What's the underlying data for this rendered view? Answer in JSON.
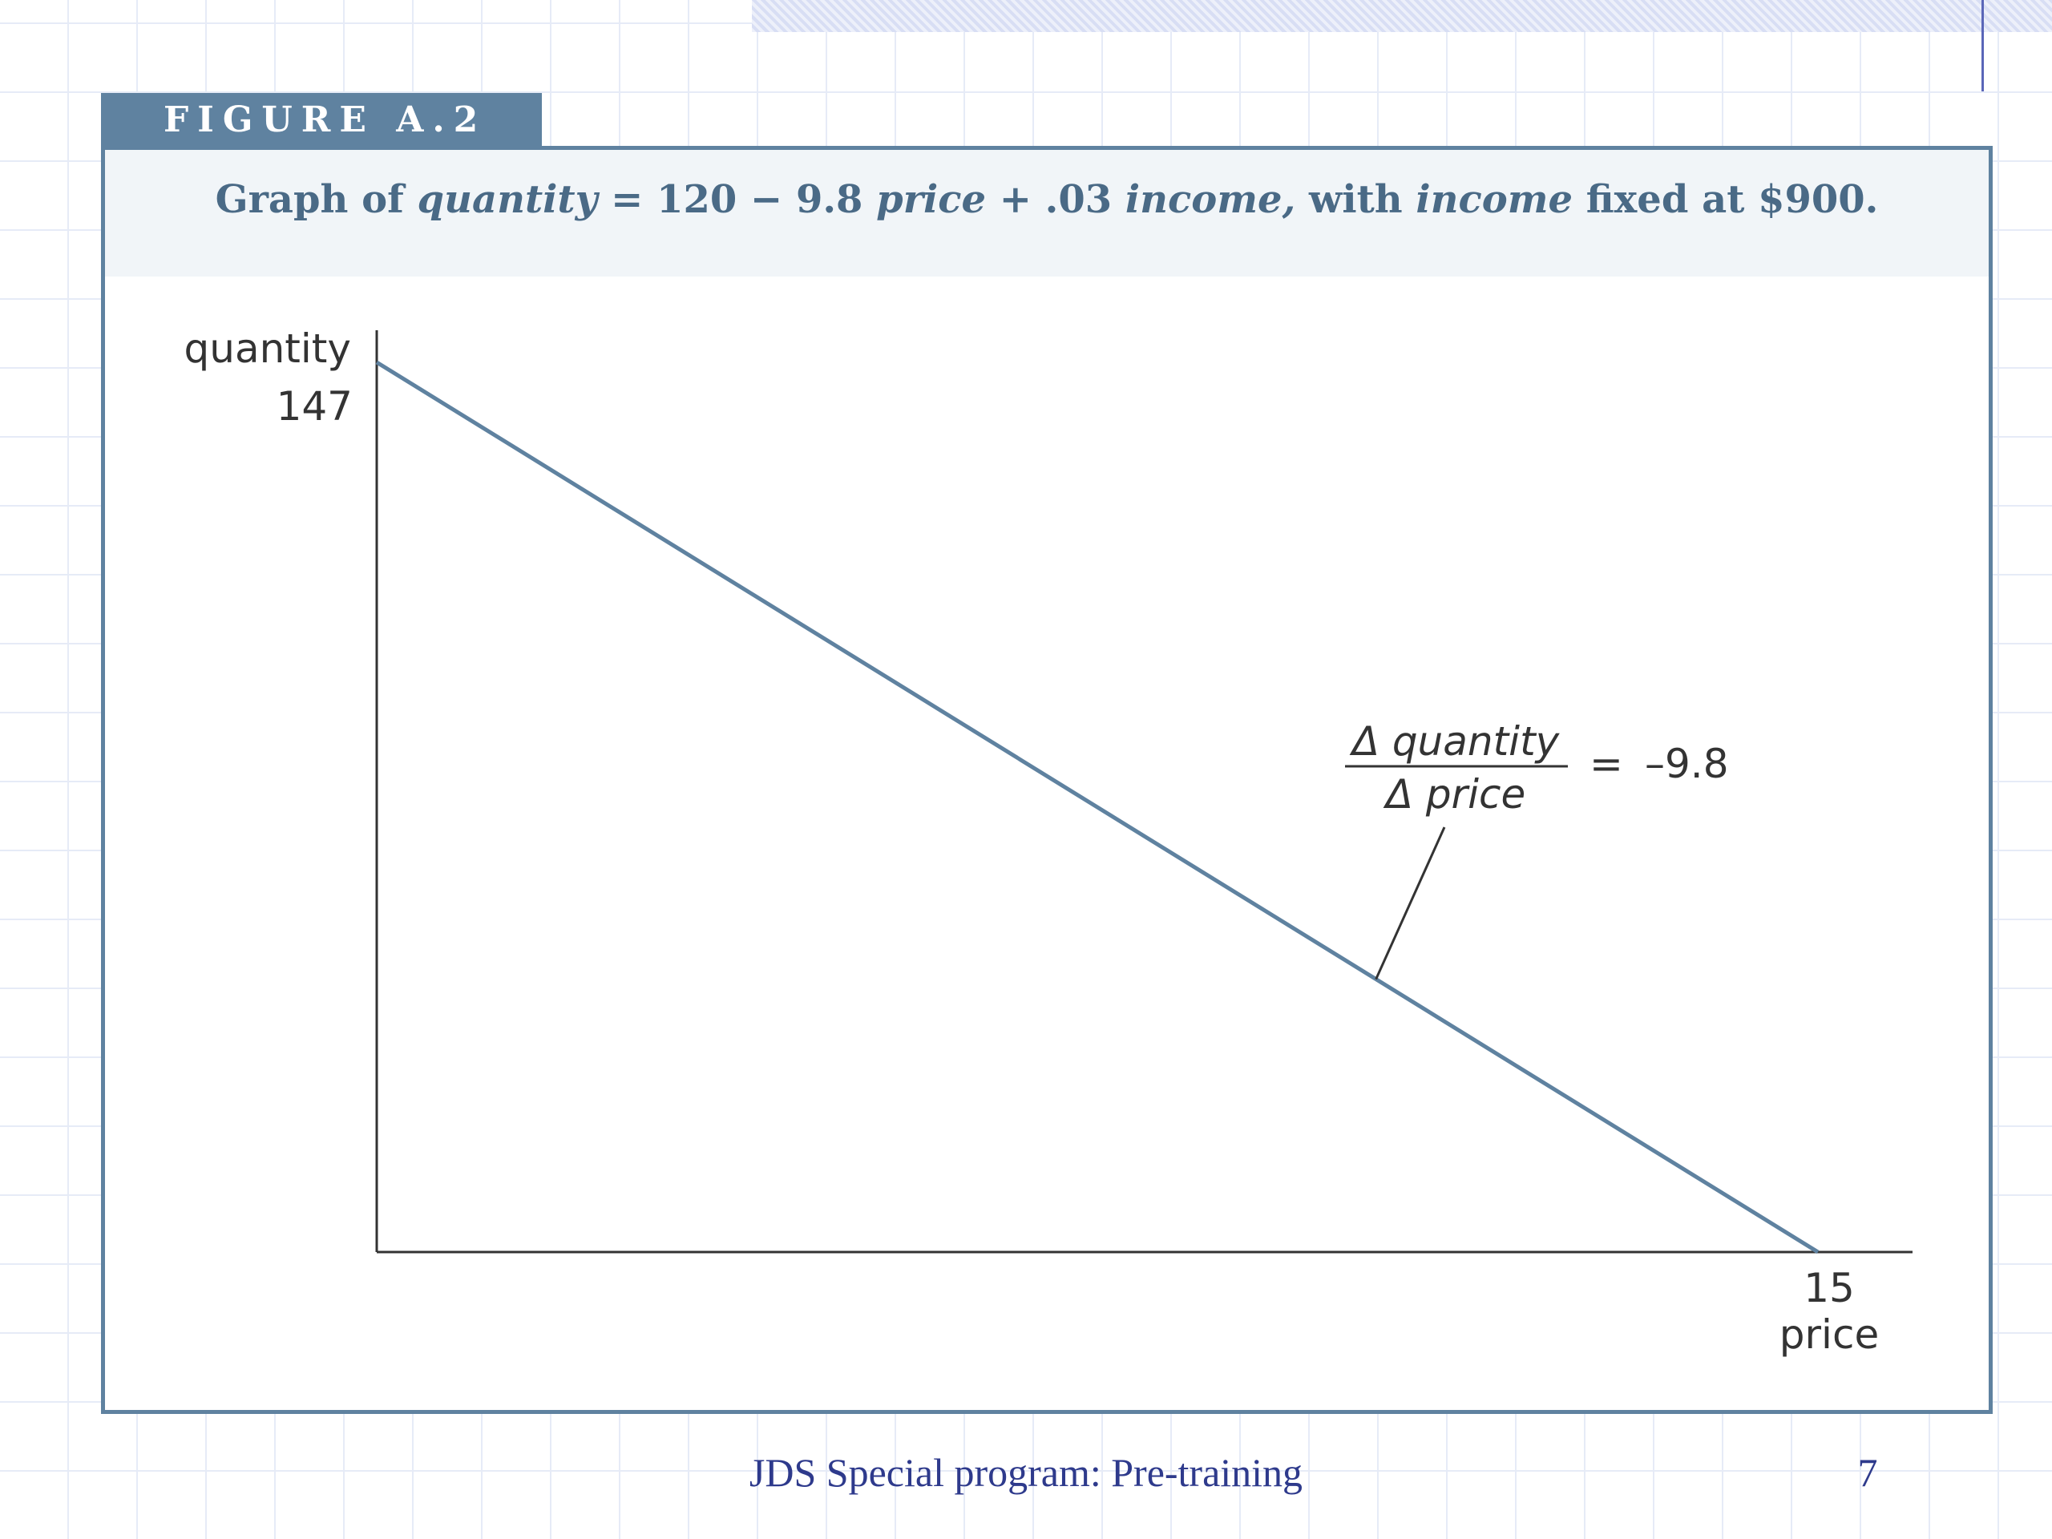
{
  "figure": {
    "label": "FIGURE A.2",
    "caption_parts": {
      "p1": "Graph of ",
      "p2": "quantity",
      "p3": " = 120 − 9.8 ",
      "p4": "price",
      "p5": " + .03 ",
      "p6": "income,",
      "p7": " with ",
      "p8": "income",
      "p9": " fixed at $900."
    }
  },
  "colors": {
    "tab": "#5f82a0",
    "frame": "#5f82a0",
    "line": "#5f82a0",
    "axis": "#333333",
    "caption_text": "#4a6a86",
    "footer_text": "#2e3a8c"
  },
  "chart_data": {
    "type": "line",
    "title": "Graph of quantity = 120 − 9.8 price + .03 income, with income fixed at $900.",
    "xlabel": "price",
    "ylabel": "quantity",
    "xlim": [
      0,
      15
    ],
    "ylim": [
      0,
      147
    ],
    "x_tick_labels": [
      "15"
    ],
    "y_tick_labels": [
      "147"
    ],
    "grid": false,
    "series": [
      {
        "x": [
          0,
          15
        ],
        "y": [
          147,
          0
        ]
      }
    ],
    "annotation": {
      "numerator": "Δ quantity",
      "denominator": "Δ price",
      "equals": "=",
      "value": "–9.8",
      "slope": -9.8,
      "anchor_x": 10.4
    }
  },
  "footer": {
    "text": "JDS Special program: Pre-training",
    "page_number": "7"
  }
}
